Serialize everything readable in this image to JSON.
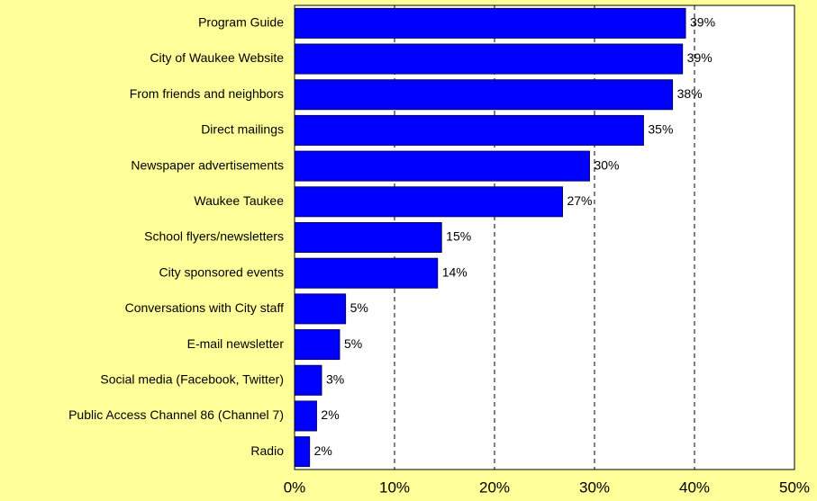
{
  "chart_data": {
    "type": "bar",
    "orientation": "horizontal",
    "categories": [
      "Program Guide",
      "City of Waukee Website",
      "From friends and neighbors",
      "Direct mailings",
      "Newspaper advertisements",
      "Waukee Taukee",
      "School flyers/newsletters",
      "City sponsored events",
      "Conversations with City staff",
      "E-mail newsletter",
      "Social media (Facebook, Twitter)",
      "Public Access Channel 86 (Channel 7)",
      "Radio"
    ],
    "values": [
      39.1,
      38.8,
      37.8,
      34.9,
      29.5,
      26.8,
      14.7,
      14.3,
      5.1,
      4.5,
      2.7,
      2.2,
      1.5
    ],
    "value_labels": [
      "39%",
      "39%",
      "38%",
      "35%",
      "30%",
      "27%",
      "15%",
      "14%",
      "5%",
      "5%",
      "3%",
      "2%",
      "2%"
    ],
    "color": "#0000ff",
    "xlim": [
      0,
      50
    ],
    "xticks": [
      {
        "value": 0,
        "label": "0%"
      },
      {
        "value": 10,
        "label": "10%"
      },
      {
        "value": 20,
        "label": "20%"
      },
      {
        "value": 30,
        "label": "30%"
      },
      {
        "value": 40,
        "label": "40%"
      },
      {
        "value": 50,
        "label": "50%"
      }
    ],
    "grid": true
  }
}
